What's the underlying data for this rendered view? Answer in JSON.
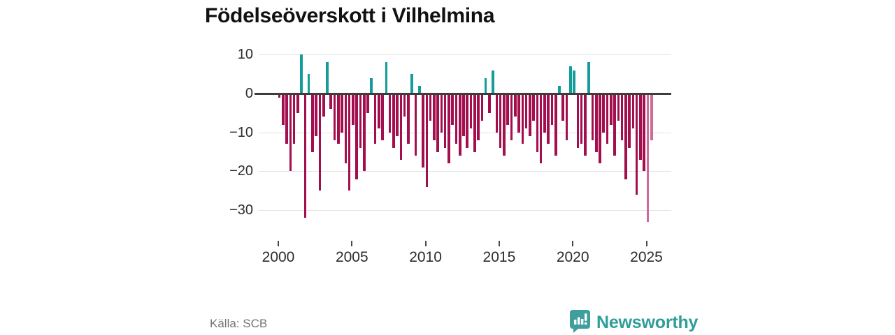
{
  "title": "Födelseöverskott i Vilhelmina",
  "source": "Källa: SCB",
  "brand": {
    "name": "Newsworthy",
    "color": "#2f9e99",
    "logo": "newsworthy-bubble-barchart-logo"
  },
  "chart_data": {
    "type": "bar",
    "title": "Födelseöverskott i Vilhelmina",
    "xlabel": "",
    "ylabel": "",
    "x_start": "2000-Q1",
    "x_end": "2025-Q2",
    "frequency": "quarterly",
    "x_tick_labels": [
      "2000",
      "2005",
      "2010",
      "2015",
      "2020",
      "2025"
    ],
    "y_tick_values": [
      10,
      0,
      -10,
      -20,
      -30
    ],
    "y_tick_labels": [
      "10",
      "0",
      "−10",
      "−20",
      "−30"
    ],
    "ylim": [
      -35,
      12
    ],
    "grid": "horizontal",
    "legend": "none",
    "colors": {
      "positive": "#129c9a",
      "negative": "#a30e4f",
      "negative_preliminary": "#cc6d97",
      "zero_line": "#3d3d3d",
      "gridline": "#e3e3e3"
    },
    "preliminary_last_n": 2,
    "series": [
      {
        "name": "Födelseöverskott",
        "values": [
          -1,
          -8,
          -13,
          -20,
          -13,
          -5,
          10,
          -32,
          5,
          -15,
          -11,
          -25,
          -6,
          8,
          -4,
          -12,
          -13,
          -10,
          -18,
          -25,
          -8,
          -22,
          -14,
          -20,
          -5,
          4,
          -13,
          -9,
          -12,
          8,
          -10,
          -14,
          -11,
          -17,
          -6,
          -13,
          5,
          -16,
          2,
          -19,
          -24,
          -7,
          -12,
          -15,
          -10,
          -14,
          -18,
          -8,
          -13,
          -16,
          -11,
          -14,
          -9,
          -15,
          -12,
          -7,
          4,
          -5,
          6,
          -10,
          -14,
          -16,
          -8,
          -12,
          -6,
          -10,
          -13,
          -9,
          -11,
          -7,
          -15,
          -18,
          -10,
          -13,
          -8,
          -16,
          2,
          -7,
          -12,
          7,
          6,
          -14,
          -13,
          -16,
          8,
          -12,
          -15,
          -18,
          -10,
          -13,
          -8,
          -16,
          -7,
          -12,
          -22,
          -14,
          -9,
          -26,
          -17,
          -20,
          -33,
          -12
        ]
      }
    ]
  }
}
